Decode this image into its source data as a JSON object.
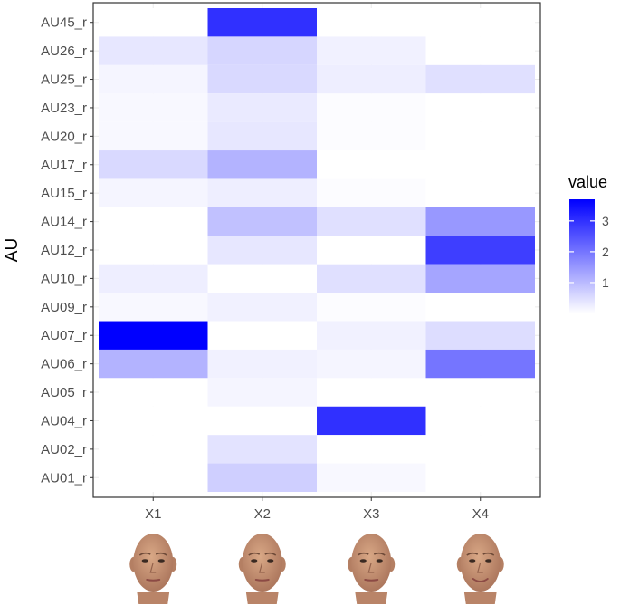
{
  "chart_data": {
    "type": "heatmap",
    "title": "",
    "xlabel": "",
    "ylabel": "AU",
    "x_categories": [
      "X1",
      "X2",
      "X3",
      "X4"
    ],
    "y_categories": [
      "AU45_r",
      "AU26_r",
      "AU25_r",
      "AU23_r",
      "AU20_r",
      "AU17_r",
      "AU15_r",
      "AU14_r",
      "AU12_r",
      "AU10_r",
      "AU09_r",
      "AU07_r",
      "AU06_r",
      "AU05_r",
      "AU04_r",
      "AU02_r",
      "AU01_r"
    ],
    "values": [
      [
        0.0,
        3.0,
        0.0,
        0.0
      ],
      [
        0.35,
        0.6,
        0.2,
        0.0
      ],
      [
        0.15,
        0.55,
        0.25,
        0.45
      ],
      [
        0.1,
        0.3,
        0.05,
        0.0
      ],
      [
        0.1,
        0.35,
        0.05,
        0.0
      ],
      [
        0.55,
        1.1,
        0.0,
        0.0
      ],
      [
        0.15,
        0.25,
        0.05,
        0.0
      ],
      [
        0.0,
        0.9,
        0.45,
        1.5
      ],
      [
        0.0,
        0.35,
        0.0,
        2.8
      ],
      [
        0.25,
        0.0,
        0.45,
        1.3
      ],
      [
        0.1,
        0.2,
        0.05,
        0.0
      ],
      [
        3.7,
        0.0,
        0.2,
        0.5
      ],
      [
        1.1,
        0.2,
        0.15,
        2.0
      ],
      [
        0.0,
        0.15,
        0.0,
        0.0
      ],
      [
        0.0,
        0.0,
        3.0,
        0.0
      ],
      [
        0.0,
        0.4,
        0.0,
        0.0
      ],
      [
        0.0,
        0.7,
        0.1,
        0.0
      ]
    ],
    "color_scale": {
      "low": "#ffffff",
      "high": "#0000ff",
      "min": 0,
      "max": 3.7
    },
    "legend": {
      "title": "value",
      "ticks": [
        1,
        2,
        3
      ],
      "position": "right"
    },
    "grid": true
  },
  "faces": [
    {
      "column": "X1",
      "icon": "neutral-face-icon"
    },
    {
      "column": "X2",
      "icon": "neutral-face-icon"
    },
    {
      "column": "X3",
      "icon": "neutral-face-icon"
    },
    {
      "column": "X4",
      "icon": "smiling-face-icon"
    }
  ]
}
